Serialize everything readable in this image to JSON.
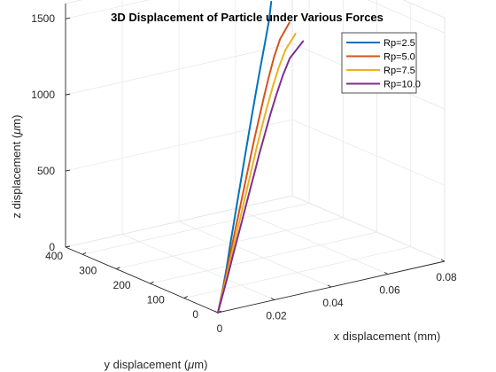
{
  "chart_data": {
    "type": "line",
    "title": "3D Displacement of Particle under Various Forces",
    "xlabel": "x displacement (mm)",
    "ylabel_prefix": "y displacement (",
    "ylabel_mu": "μ",
    "ylabel_suffix": "m)",
    "zlabel_prefix": "z displacement (",
    "zlabel_mu": "μ",
    "zlabel_suffix": "m)",
    "xlim": [
      0,
      0.08
    ],
    "ylim": [
      0,
      450
    ],
    "zlim": [
      0,
      1600
    ],
    "xticks": [
      {
        "value": 0,
        "label": "0"
      },
      {
        "value": 0.02,
        "label": "0.02"
      },
      {
        "value": 0.04,
        "label": "0.04"
      },
      {
        "value": 0.06,
        "label": "0.06"
      },
      {
        "value": 0.08,
        "label": "0.08"
      }
    ],
    "yticks": [
      {
        "value": 0,
        "label": "0"
      },
      {
        "value": 100,
        "label": "100"
      },
      {
        "value": 200,
        "label": "200"
      },
      {
        "value": 300,
        "label": "300"
      },
      {
        "value": 400,
        "label": "400"
      }
    ],
    "zticks": [
      {
        "value": 0,
        "label": "0"
      },
      {
        "value": 500,
        "label": "500"
      },
      {
        "value": 1000,
        "label": "1000"
      },
      {
        "value": 1500,
        "label": "1500"
      }
    ],
    "grid": true,
    "legend_position": "top-right",
    "series": [
      {
        "name": "Rp=2.5",
        "color": "#0072BD",
        "x": [
          0,
          0.004,
          0.008,
          0.012,
          0.016,
          0.02,
          0.024,
          0.028,
          0.032,
          0.036,
          0.04,
          0.044,
          0.048,
          0.052,
          0.055
        ],
        "y": [
          0,
          20,
          41,
          64,
          86,
          108,
          130,
          152,
          174,
          196,
          218,
          240,
          262,
          284,
          303
        ],
        "z": [
          0,
          110,
          222,
          335,
          450,
          566,
          681,
          796,
          910,
          1020,
          1128,
          1230,
          1330,
          1430,
          1520
        ]
      },
      {
        "name": "Rp=5.0",
        "color": "#D95319",
        "x": [
          0,
          0.004,
          0.008,
          0.012,
          0.016,
          0.02,
          0.024,
          0.028,
          0.032,
          0.036,
          0.04,
          0.044,
          0.048,
          0.052,
          0.057
        ],
        "y": [
          0,
          20,
          40,
          61,
          81,
          101,
          121,
          141,
          161,
          180,
          199,
          218,
          236,
          252,
          266
        ],
        "z": [
          0,
          102,
          205,
          310,
          416,
          522,
          630,
          737,
          845,
          950,
          1055,
          1155,
          1250,
          1335,
          1410
        ]
      },
      {
        "name": "Rp=7.5",
        "color": "#EDB120",
        "x": [
          0,
          0.004,
          0.008,
          0.012,
          0.016,
          0.02,
          0.024,
          0.028,
          0.032,
          0.036,
          0.04,
          0.044,
          0.048,
          0.052,
          0.057
        ],
        "y": [
          0,
          19,
          38,
          58,
          77,
          96,
          115,
          134,
          153,
          171,
          189,
          206,
          222,
          236,
          248
        ],
        "z": [
          0,
          97,
          195,
          294,
          395,
          497,
          600,
          703,
          806,
          908,
          1008,
          1105,
          1195,
          1280,
          1355
        ]
      },
      {
        "name": "Rp=10.0",
        "color": "#7E2F8E",
        "x": [
          0,
          0.004,
          0.008,
          0.012,
          0.016,
          0.02,
          0.024,
          0.028,
          0.032,
          0.036,
          0.04,
          0.044,
          0.048,
          0.052,
          0.058
        ],
        "y": [
          0,
          18,
          36,
          55,
          73,
          91,
          109,
          127,
          145,
          162,
          179,
          195,
          210,
          223,
          234
        ],
        "z": [
          0,
          93,
          187,
          282,
          378,
          476,
          575,
          674,
          774,
          872,
          970,
          1064,
          1154,
          1238,
          1315
        ]
      }
    ]
  }
}
